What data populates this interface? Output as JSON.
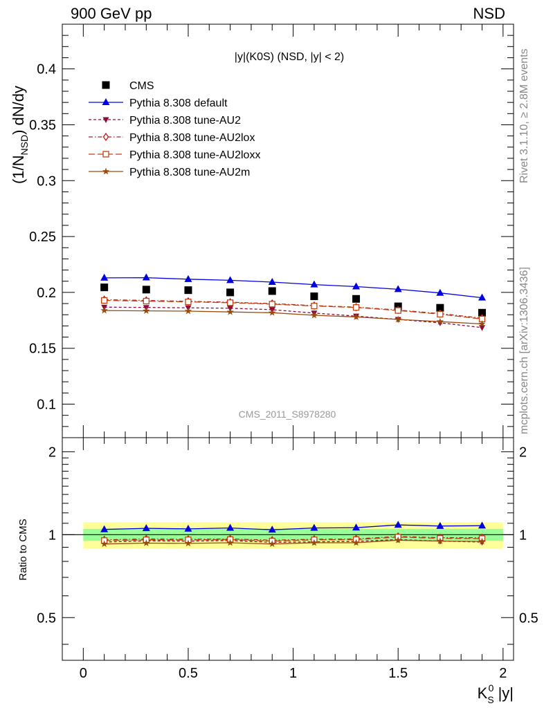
{
  "header": {
    "left": "900 GeV pp",
    "right": "NSD"
  },
  "side_labels": {
    "rivet": "Rivet 3.1.10, ≥ 2.8M events",
    "mcplots": "mcplots.cern.ch [arXiv:1306.3436]"
  },
  "chart_data": [
    {
      "type": "line",
      "title": "|y|(K0S) (NSD, |y| < 2)",
      "ylabel": "(1/N_NSD) dN/dy",
      "watermark": "CMS_2011_S8978280",
      "xlim": [
        -0.1,
        2.05
      ],
      "ylim": [
        0.07,
        0.44
      ],
      "yticks": [
        "0.1",
        "0.15",
        "0.2",
        "0.25",
        "0.3",
        "0.35",
        "0.4"
      ],
      "x": [
        0.1,
        0.3,
        0.5,
        0.7,
        0.9,
        1.1,
        1.3,
        1.5,
        1.7,
        1.9
      ],
      "series": [
        {
          "name": "CMS",
          "marker": "square",
          "color": "#000000",
          "style": "points",
          "values": [
            0.2045,
            0.2025,
            0.202,
            0.2,
            0.2012,
            0.1965,
            0.1942,
            0.1875,
            0.1862,
            0.1818
          ]
        },
        {
          "name": "Pythia 8.308 default",
          "marker": "triangle-up",
          "color": "#0000e0",
          "style": "solid",
          "values": [
            0.213,
            0.2132,
            0.2118,
            0.2108,
            0.2092,
            0.207,
            0.2052,
            0.2028,
            0.1995,
            0.1952
          ]
        },
        {
          "name": "Pythia 8.308 tune-AU2",
          "marker": "triangle-down",
          "color": "#8a0a3a",
          "style": "short-dash",
          "values": [
            0.1868,
            0.1865,
            0.1862,
            0.1858,
            0.1845,
            0.1815,
            0.1788,
            0.1758,
            0.1728,
            0.1685
          ]
        },
        {
          "name": "Pythia 8.308 tune-AU2lox",
          "marker": "diamond-open",
          "color": "#b81c1c",
          "style": "dash-dot",
          "values": [
            0.1935,
            0.1928,
            0.192,
            0.1912,
            0.19,
            0.1882,
            0.1868,
            0.1842,
            0.181,
            0.177
          ]
        },
        {
          "name": "Pythia 8.308 tune-AU2loxx",
          "marker": "square-open",
          "color": "#c2410c",
          "style": "long-dash",
          "values": [
            0.1928,
            0.1922,
            0.1915,
            0.1908,
            0.1895,
            0.1878,
            0.1865,
            0.1838,
            0.1805,
            0.1762
          ]
        },
        {
          "name": "Pythia 8.308 tune-AU2m",
          "marker": "star",
          "color": "#9a4a0a",
          "style": "solid",
          "values": [
            0.1838,
            0.1835,
            0.1832,
            0.1825,
            0.1818,
            0.1795,
            0.178,
            0.1758,
            0.1738,
            0.1718
          ]
        }
      ],
      "legend_position": "top-left"
    },
    {
      "type": "line",
      "ylabel": "Ratio to CMS",
      "xlabel": "K_S^0 |y|",
      "xlim": [
        -0.1,
        2.05
      ],
      "ylim": [
        0.35,
        2.25
      ],
      "xticks": [
        "0",
        "0.5",
        "1",
        "1.5",
        "2"
      ],
      "yticks": [
        "0.5",
        "1",
        "2"
      ],
      "bands": {
        "yellow": [
          0.89,
          1.11
        ],
        "green": [
          0.95,
          1.05
        ]
      },
      "x": [
        0.1,
        0.3,
        0.5,
        0.7,
        0.9,
        1.1,
        1.3,
        1.5,
        1.7,
        1.9
      ],
      "series": [
        {
          "name": "Pythia 8.308 default",
          "values": [
            1.045,
            1.055,
            1.05,
            1.058,
            1.042,
            1.058,
            1.06,
            1.085,
            1.075,
            1.078
          ]
        },
        {
          "name": "Pythia 8.308 tune-AU2",
          "values": [
            0.94,
            0.95,
            0.948,
            0.952,
            0.938,
            0.942,
            0.945,
            0.96,
            0.948,
            0.94
          ]
        },
        {
          "name": "Pythia 8.308 tune-AU2lox",
          "values": [
            0.958,
            0.965,
            0.962,
            0.965,
            0.955,
            0.962,
            0.965,
            0.985,
            0.975,
            0.975
          ]
        },
        {
          "name": "Pythia 8.308 tune-AU2loxx",
          "values": [
            0.952,
            0.958,
            0.958,
            0.96,
            0.948,
            0.958,
            0.96,
            0.98,
            0.97,
            0.968
          ]
        },
        {
          "name": "Pythia 8.308 tune-AU2m",
          "values": [
            0.925,
            0.932,
            0.93,
            0.935,
            0.925,
            0.935,
            0.935,
            0.955,
            0.948,
            0.945
          ]
        }
      ]
    }
  ]
}
